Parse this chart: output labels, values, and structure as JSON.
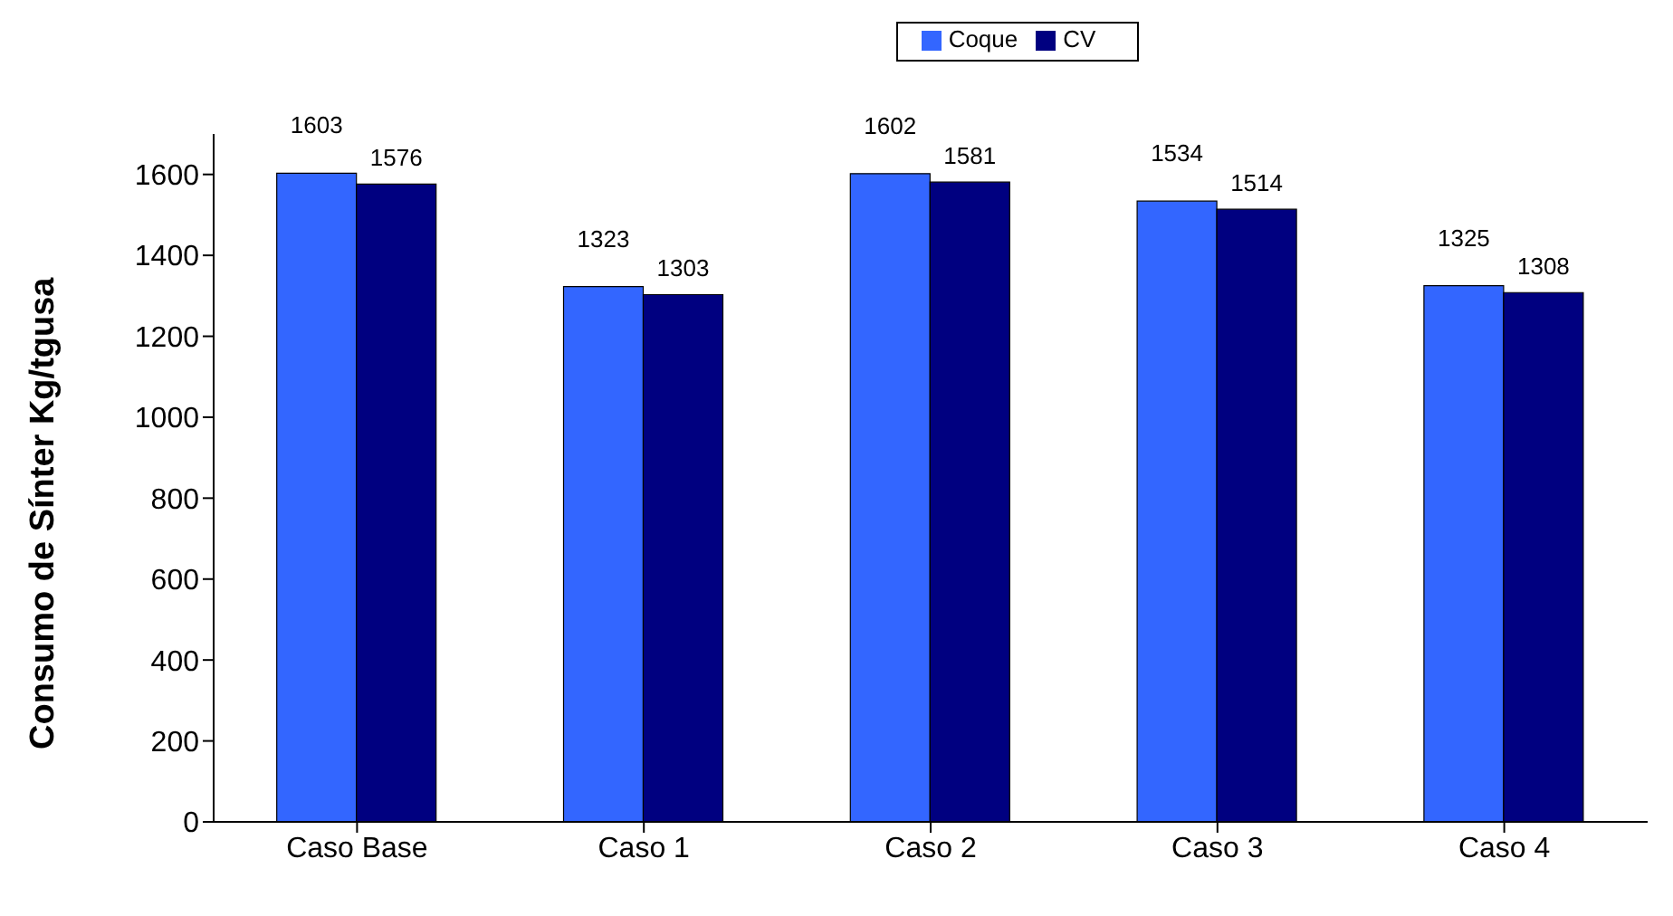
{
  "chart_data": {
    "type": "bar",
    "categories": [
      "Caso Base",
      "Caso 1",
      "Caso 2",
      "Caso 3",
      "Caso 4"
    ],
    "series": [
      {
        "name": "Coque",
        "color": "#3366ff",
        "values": [
          1603,
          1323,
          1602,
          1534,
          1325
        ]
      },
      {
        "name": "CV",
        "color": "#000080",
        "values": [
          1576,
          1303,
          1581,
          1514,
          1308
        ]
      }
    ],
    "ylabel": "Consumo de Sínter Kg/tgusa",
    "ylim": [
      0,
      1700
    ],
    "yticks": [
      0,
      200,
      400,
      600,
      800,
      1000,
      1200,
      1400,
      1600
    ],
    "grid": false,
    "legend": "top",
    "data_labels": true
  }
}
